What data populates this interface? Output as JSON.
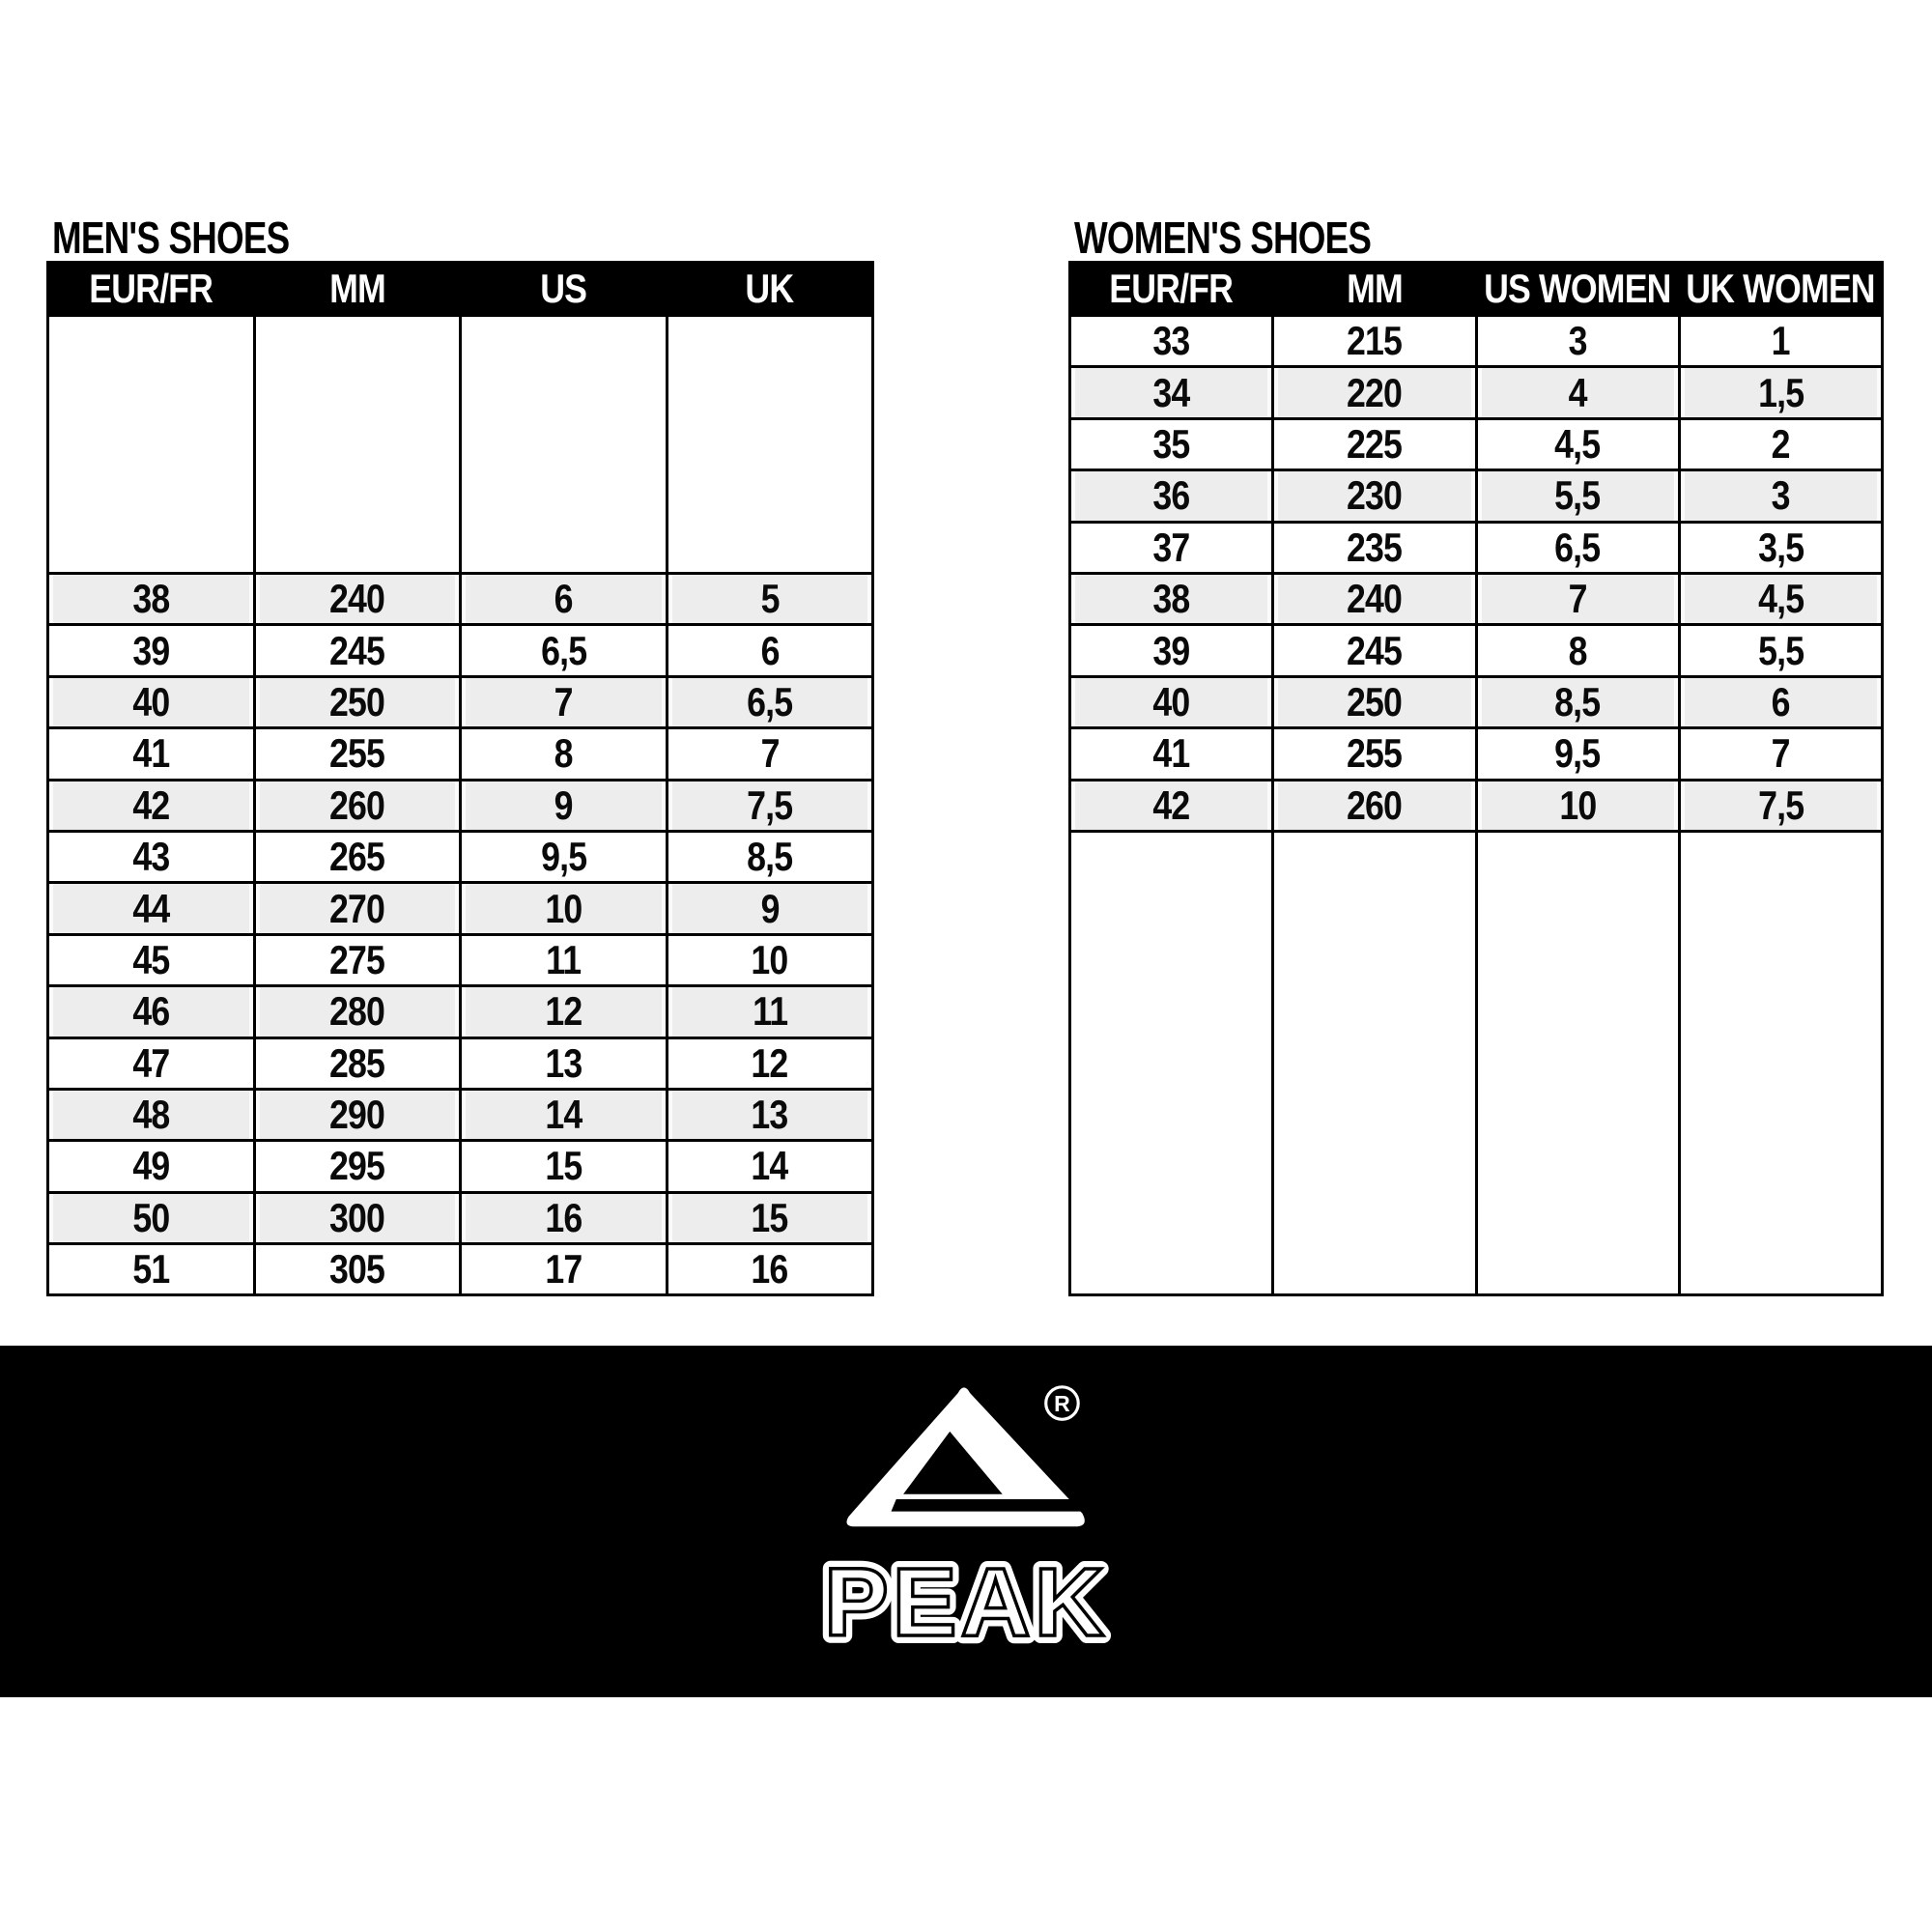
{
  "tables": {
    "men": {
      "title": "MEN'S SHOES",
      "columns": [
        "EUR/FR",
        "MM",
        "US",
        "UK"
      ],
      "rows": [
        [
          "38",
          "240",
          "6",
          "5"
        ],
        [
          "39",
          "245",
          "6,5",
          "6"
        ],
        [
          "40",
          "250",
          "7",
          "6,5"
        ],
        [
          "41",
          "255",
          "8",
          "7"
        ],
        [
          "42",
          "260",
          "9",
          "7,5"
        ],
        [
          "43",
          "265",
          "9,5",
          "8,5"
        ],
        [
          "44",
          "270",
          "10",
          "9"
        ],
        [
          "45",
          "275",
          "11",
          "10"
        ],
        [
          "46",
          "280",
          "12",
          "11"
        ],
        [
          "47",
          "285",
          "13",
          "12"
        ],
        [
          "48",
          "290",
          "14",
          "13"
        ],
        [
          "49",
          "295",
          "15",
          "14"
        ],
        [
          "50",
          "300",
          "16",
          "15"
        ],
        [
          "51",
          "305",
          "17",
          "16"
        ]
      ]
    },
    "women": {
      "title": "WOMEN'S SHOES",
      "columns": [
        "EUR/FR",
        "MM",
        "US WOMEN",
        "UK WOMEN"
      ],
      "rows": [
        [
          "33",
          "215",
          "3",
          "1"
        ],
        [
          "34",
          "220",
          "4",
          "1,5"
        ],
        [
          "35",
          "225",
          "4,5",
          "2"
        ],
        [
          "36",
          "230",
          "5,5",
          "3"
        ],
        [
          "37",
          "235",
          "6,5",
          "3,5"
        ],
        [
          "38",
          "240",
          "7",
          "4,5"
        ],
        [
          "39",
          "245",
          "8",
          "5,5"
        ],
        [
          "40",
          "250",
          "8,5",
          "6"
        ],
        [
          "41",
          "255",
          "9,5",
          "7"
        ],
        [
          "42",
          "260",
          "10",
          "7,5"
        ]
      ]
    }
  },
  "brand": {
    "wordmark": "PEAK",
    "registered_letter": "R"
  },
  "colors": {
    "header_bg": "#000000",
    "header_text": "#ffffff",
    "row_shade": "#ededed",
    "table_border": "#000000",
    "banner_bg": "#000000",
    "logo_color": "#ffffff"
  }
}
